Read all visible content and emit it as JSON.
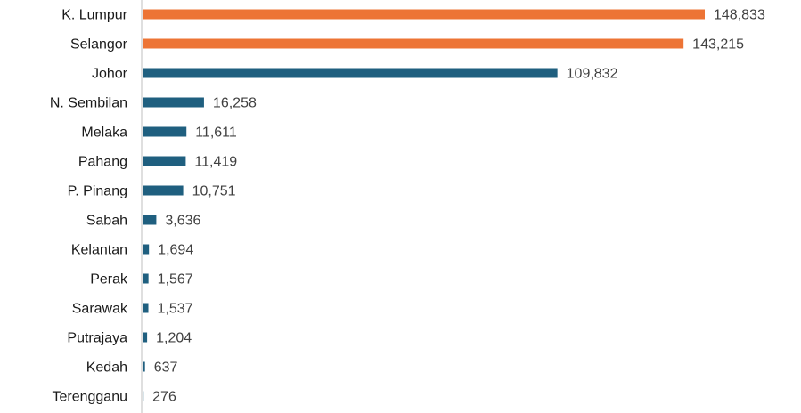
{
  "chart_data": {
    "type": "bar",
    "orientation": "horizontal",
    "title": "",
    "xlabel": "",
    "ylabel": "",
    "categories": [
      "K. Lumpur",
      "Selangor",
      "Johor",
      "N. Sembilan",
      "Melaka",
      "Pahang",
      "P. Pinang",
      "Sabah",
      "Kelantan",
      "Perak",
      "Sarawak",
      "Putrajaya",
      "Kedah",
      "Terengganu"
    ],
    "values": [
      148833,
      143215,
      109832,
      16258,
      11611,
      11419,
      10751,
      3636,
      1694,
      1567,
      1537,
      1204,
      637,
      276
    ],
    "value_labels": [
      "148,833",
      "143,215",
      "109,832",
      "16,258",
      "11,611",
      "11,419",
      "10,751",
      "3,636",
      "1,694",
      "1,567",
      "1,537",
      "1,204",
      "637",
      "276"
    ],
    "highlight": [
      "K. Lumpur",
      "Selangor"
    ],
    "colors": {
      "highlight": "#ED7435",
      "default": "#1F5F7F",
      "axis": "#BFBFBF"
    },
    "xlim": [
      0,
      148833
    ],
    "grid": false,
    "legend": "none"
  }
}
